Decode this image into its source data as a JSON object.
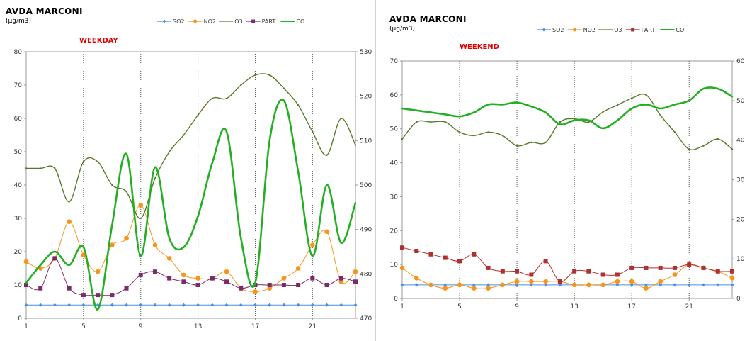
{
  "chart_data": [
    {
      "type": "line",
      "title": "AVDA MARCONI",
      "unit": "(µg/m3)",
      "subtitle": "WEEKDAY",
      "x": [
        1,
        2,
        3,
        4,
        5,
        6,
        7,
        8,
        9,
        10,
        11,
        12,
        13,
        14,
        15,
        16,
        17,
        18,
        19,
        20,
        21,
        22,
        23,
        24
      ],
      "x_ticks": [
        1,
        5,
        9,
        13,
        17,
        21
      ],
      "ylim": [
        0,
        80
      ],
      "y_ticks": [
        0,
        10,
        20,
        30,
        40,
        50,
        60,
        70,
        80
      ],
      "y2lim": [
        470,
        530
      ],
      "y2_ticks": [
        470,
        480,
        490,
        500,
        510,
        520,
        530
      ],
      "grid": "vertical",
      "legend_position": "top-right",
      "series": [
        {
          "name": "SO2",
          "axis": "left",
          "color": "#4a90e2",
          "marker": "diamond",
          "values": [
            4,
            4,
            4,
            4,
            4,
            4,
            4,
            4,
            4,
            4,
            4,
            4,
            4,
            4,
            4,
            4,
            4,
            4,
            4,
            4,
            4,
            4,
            4,
            4
          ]
        },
        {
          "name": "NO2",
          "axis": "left",
          "color": "#f7941d",
          "marker": "circle",
          "values": [
            17,
            15,
            18,
            29,
            19,
            14,
            22,
            24,
            34,
            22,
            18,
            13,
            12,
            12,
            14,
            9,
            8,
            9,
            12,
            15,
            22,
            26,
            11,
            14
          ]
        },
        {
          "name": "O3",
          "axis": "left",
          "color": "#5a7a2a",
          "marker": "none",
          "values": [
            45,
            45,
            45,
            35,
            47,
            47,
            40,
            38,
            30,
            42,
            50,
            55,
            61,
            66,
            66,
            70,
            73,
            73,
            69,
            64,
            56,
            49,
            60,
            52
          ]
        },
        {
          "name": "PART",
          "axis": "left",
          "color": "#7a2b6a",
          "marker": "square",
          "values": [
            10,
            9,
            18,
            9,
            7,
            7,
            7,
            9,
            13,
            14,
            12,
            11,
            10,
            12,
            11,
            9,
            10,
            10,
            10,
            10,
            12,
            10,
            12,
            11
          ]
        },
        {
          "name": "CO",
          "axis": "right",
          "color": "#22b022",
          "marker": "none",
          "values": [
            478,
            482,
            485,
            482,
            486,
            472,
            491,
            507,
            484,
            504,
            488,
            486,
            493,
            505,
            512,
            488,
            478,
            510,
            519,
            503,
            484,
            500,
            487,
            496
          ]
        }
      ]
    },
    {
      "type": "line",
      "title": "AVDA MARCONI",
      "unit": "(µg/m3)",
      "subtitle": "WEEKEND",
      "x": [
        1,
        2,
        3,
        4,
        5,
        6,
        7,
        8,
        9,
        10,
        11,
        12,
        13,
        14,
        15,
        16,
        17,
        18,
        19,
        20,
        21,
        22,
        23,
        24
      ],
      "x_ticks": [
        1,
        5,
        9,
        13,
        17,
        21
      ],
      "ylim": [
        0,
        70
      ],
      "y_ticks": [
        0,
        10,
        20,
        30,
        40,
        50,
        60,
        70
      ],
      "y2lim": [
        0,
        60
      ],
      "y2_ticks": [
        0,
        10,
        20,
        30,
        40,
        50,
        60
      ],
      "grid": "vertical",
      "legend_position": "top-right",
      "series": [
        {
          "name": "SO2",
          "axis": "left",
          "color": "#4a90e2",
          "marker": "diamond",
          "values": [
            4,
            4,
            4,
            4,
            4,
            4,
            4,
            4,
            4,
            4,
            4,
            4,
            4,
            4,
            4,
            4,
            4,
            4,
            4,
            4,
            4,
            4,
            4,
            4
          ]
        },
        {
          "name": "NO2",
          "axis": "left",
          "color": "#f7941d",
          "marker": "circle",
          "values": [
            9,
            6,
            4,
            3,
            4,
            3,
            3,
            4,
            5,
            5,
            5,
            5,
            4,
            4,
            4,
            5,
            5,
            3,
            5,
            7,
            10,
            9,
            8,
            6
          ]
        },
        {
          "name": "O3",
          "axis": "left",
          "color": "#5a7a2a",
          "marker": "none",
          "values": [
            47,
            52,
            52,
            52,
            49,
            48,
            49,
            48,
            45,
            46,
            46,
            52,
            53,
            52,
            55,
            57,
            59,
            60,
            54,
            49,
            44,
            45,
            47,
            44
          ]
        },
        {
          "name": "PART",
          "axis": "left",
          "color": "#b03030",
          "marker": "square",
          "values": [
            15,
            14,
            13,
            12,
            11,
            13,
            9,
            8,
            8,
            7,
            11,
            5,
            8,
            8,
            7,
            7,
            9,
            9,
            9,
            9,
            10,
            9,
            8,
            8
          ]
        },
        {
          "name": "CO",
          "axis": "right",
          "color": "#22b022",
          "marker": "none",
          "values": [
            48,
            47.5,
            47,
            46.5,
            46,
            47,
            49,
            49,
            49.5,
            48.5,
            47,
            44,
            45,
            45,
            43,
            45,
            48,
            49,
            48,
            49,
            50,
            53,
            53,
            51
          ]
        }
      ]
    }
  ]
}
